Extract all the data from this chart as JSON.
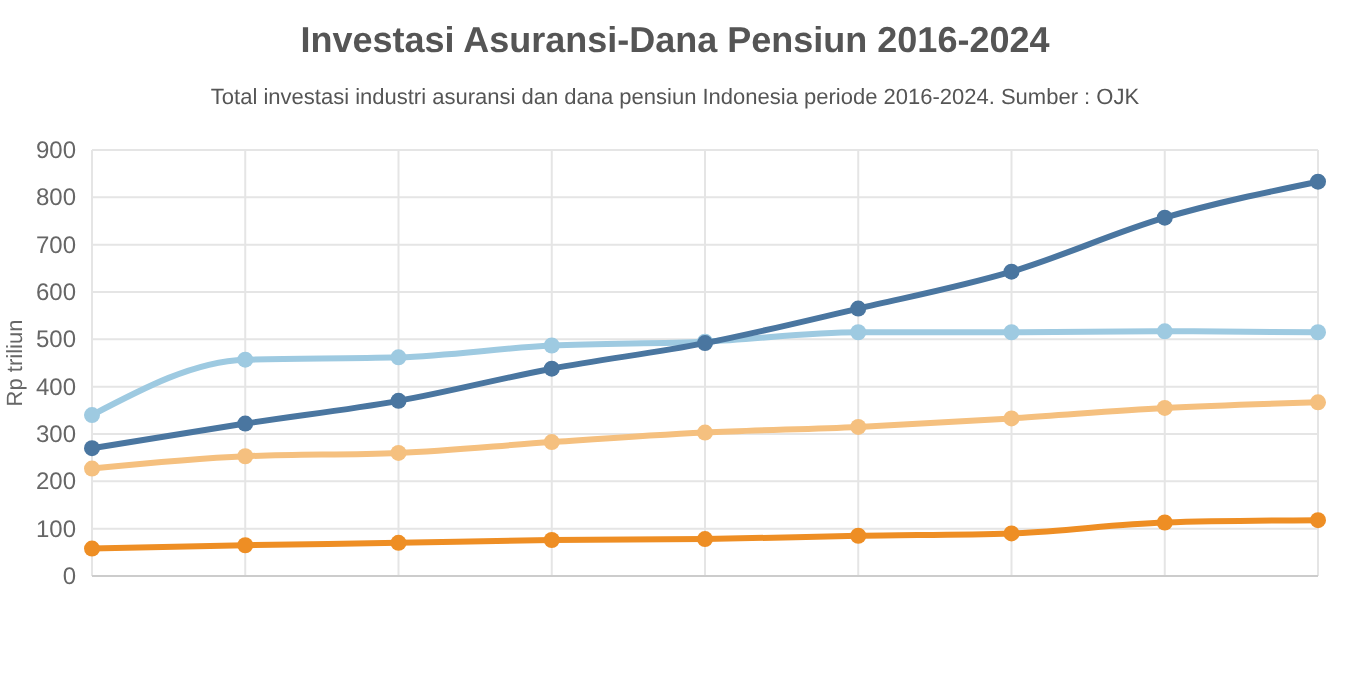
{
  "chart_data": {
    "type": "line",
    "title": "Investasi Asuransi-Dana Pensiun 2016-2024",
    "subtitle": "Total investasi industri asuransi dan dana pensiun Indonesia periode 2016-2024. Sumber : OJK",
    "ylabel": "Rp triliun",
    "categories": [
      null,
      null,
      null,
      null,
      null,
      null,
      null,
      null,
      null
    ],
    "series": [
      {
        "color": "#9ecae1",
        "values": [
          340,
          457,
          462,
          487,
          495,
          515,
          515,
          517,
          515
        ]
      },
      {
        "color": "#4a76a0",
        "values": [
          270,
          322,
          370,
          438,
          492,
          565,
          643,
          757,
          833
        ]
      },
      {
        "color": "#f5c07f",
        "values": [
          227,
          253,
          260,
          283,
          303,
          315,
          333,
          355,
          367
        ]
      },
      {
        "color": "#ee8e24",
        "values": [
          58,
          65,
          70,
          76,
          78,
          85,
          90,
          113,
          118
        ]
      }
    ],
    "ylim": [
      0,
      900
    ],
    "yticks": [
      0,
      100,
      200,
      300,
      400,
      500,
      600,
      700,
      800,
      900
    ],
    "grid": true,
    "marker": "circle",
    "line_style": "solid"
  }
}
